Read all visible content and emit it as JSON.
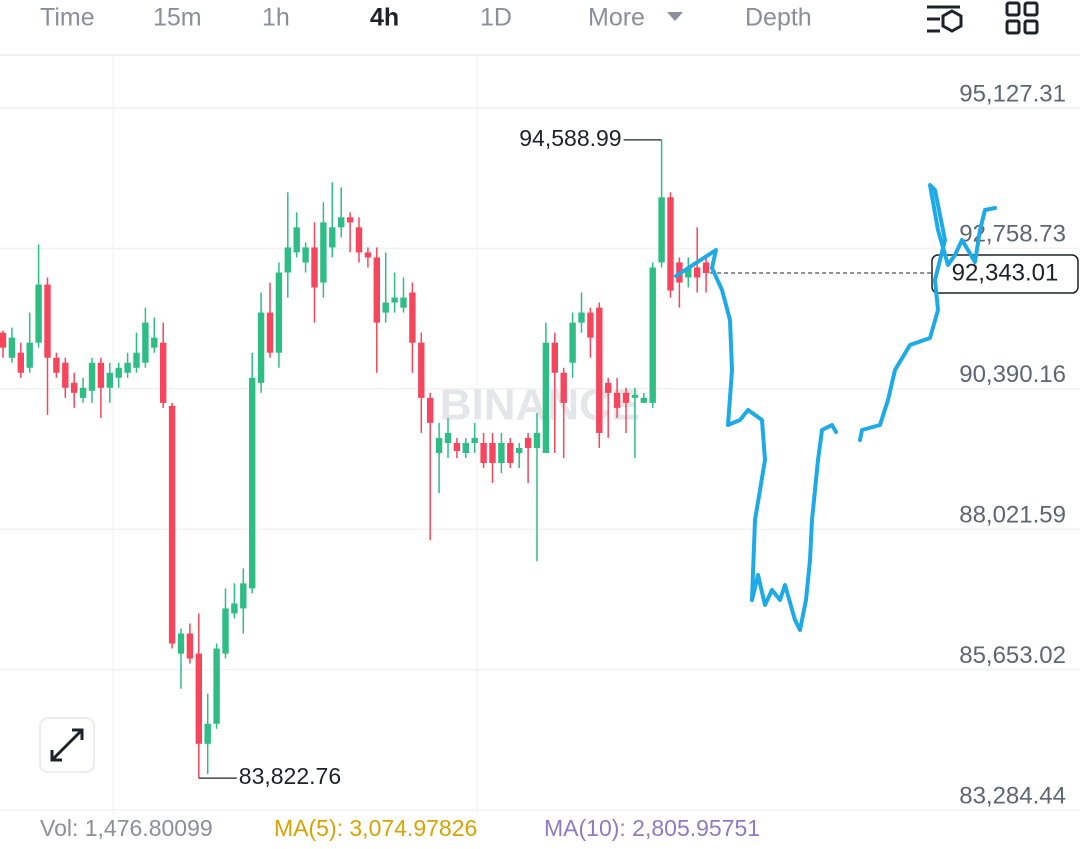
{
  "toolbar": {
    "tabs": [
      "Time",
      "15m",
      "1h",
      "4h",
      "1D",
      "More",
      "Depth"
    ],
    "active": "4h"
  },
  "indicators": {
    "vol": "Vol: 1,476.80099",
    "ma5": "MA(5): 3,074.97826",
    "ma10": "MA(10): 2,805.95751"
  },
  "watermark": "BINANCE",
  "chart_data": {
    "type": "candlestick",
    "ylim": [
      83284.44,
      96021.4
    ],
    "yticks": [
      {
        "value": 95127.31,
        "label": "95,127.31"
      },
      {
        "value": 92758.73,
        "label": "92,758.73"
      },
      {
        "value": 90390.16,
        "label": "90,390.16"
      },
      {
        "value": 88021.59,
        "label": "88,021.59"
      },
      {
        "value": 85653.02,
        "label": "85,653.02"
      },
      {
        "value": 83284.44,
        "label": "83,284.44"
      }
    ],
    "grid": true,
    "up_color": "#2ebd85",
    "down_color": "#f6465d",
    "open": [
      91337,
      90914,
      90999,
      90745,
      91168,
      92149,
      90914,
      90830,
      90491,
      90237,
      90356,
      90830,
      90407,
      90576,
      90661,
      90745,
      90830,
      91084,
      91168,
      90102,
      85923,
      86262,
      85923,
      84401,
      84739,
      85923,
      86600,
      86685,
      87023,
      90491,
      91676,
      90999,
      92352,
      92691,
      92522,
      92775,
      92183,
      92775,
      93114,
      93283,
      93114,
      92691,
      92606,
      91676,
      91845,
      91760,
      92014,
      91168,
      90237,
      89307,
      89476,
      89476,
      89307,
      89476,
      89476,
      89476,
      89138,
      89476,
      89307,
      89561,
      89392,
      89307,
      91168,
      90661,
      90830,
      91506,
      91676,
      91760,
      90491,
      90322,
      90322,
      90237,
      90153,
      90153,
      92522,
      93621,
      92522,
      92268,
      92437,
      92522
    ],
    "high": [
      91371,
      91422,
      91168,
      91676,
      92826,
      92268,
      90999,
      90914,
      90661,
      90576,
      90914,
      90914,
      90830,
      90830,
      90999,
      91337,
      91760,
      91591,
      91506,
      90153,
      86346,
      86431,
      86600,
      85247,
      86093,
      87023,
      87108,
      87361,
      90999,
      92014,
      92183,
      92522,
      93706,
      93367,
      92860,
      93198,
      93537,
      93875,
      93790,
      93367,
      93283,
      92775,
      92775,
      92691,
      92352,
      92268,
      92183,
      91337,
      90322,
      89815,
      89899,
      89561,
      89561,
      89815,
      89645,
      89645,
      89645,
      89561,
      89476,
      89645,
      89984,
      91506,
      91337,
      90745,
      91676,
      92014,
      91760,
      91845,
      90576,
      90576,
      90407,
      90407,
      90322,
      92522,
      94588.99,
      93706,
      92606,
      92606,
      93114,
      92606
    ],
    "low": [
      90914,
      90830,
      90576,
      90661,
      91084,
      89950,
      90576,
      90237,
      90068,
      90153,
      90153,
      89899,
      90153,
      90407,
      90576,
      90661,
      90745,
      90999,
      90068,
      86008,
      85331,
      85754,
      83822.76,
      83893,
      84655,
      85839,
      86516,
      86262,
      86939,
      90322,
      90914,
      90745,
      91929,
      92606,
      92352,
      91506,
      91929,
      92606,
      92944,
      92691,
      92522,
      92437,
      90661,
      91506,
      91676,
      91676,
      90661,
      89645,
      87835,
      88630,
      89222,
      89222,
      89222,
      89307,
      89053,
      88799,
      88969,
      89053,
      89053,
      88799,
      87480,
      89307,
      89307,
      89222,
      90576,
      91337,
      90914,
      89392,
      89561,
      89899,
      89645,
      89222,
      90153,
      90068,
      92437,
      91929,
      91760,
      92099,
      92014,
      92014
    ],
    "close": [
      91084,
      91253,
      90661,
      91168,
      92149,
      90914,
      90661,
      90407,
      90322,
      90407,
      90830,
      90407,
      90661,
      90745,
      90830,
      90999,
      91506,
      91253,
      90153,
      86093,
      86262,
      85839,
      84401,
      84739,
      86008,
      86685,
      86769,
      87108,
      90576,
      91676,
      90999,
      92352,
      92775,
      93114,
      92775,
      92099,
      93198,
      93114,
      93283,
      93198,
      92691,
      92606,
      91506,
      91845,
      91929,
      91929,
      91168,
      90237,
      89815,
      89561,
      89645,
      89341,
      89476,
      89561,
      89138,
      89138,
      89476,
      89138,
      89392,
      89392,
      89645,
      91168,
      90661,
      90153,
      91506,
      91676,
      91253,
      89645,
      90322,
      90068,
      90153,
      90289,
      90237,
      92437,
      93621,
      92048,
      92183,
      92437,
      92268,
      92343.01
    ],
    "max_label": {
      "value": 94588.99,
      "label": "94,588.99"
    },
    "min_label": {
      "value": 83822.76,
      "label": "83,822.76"
    },
    "current_price": {
      "value": 92343.01,
      "label": "92,343.01"
    }
  }
}
